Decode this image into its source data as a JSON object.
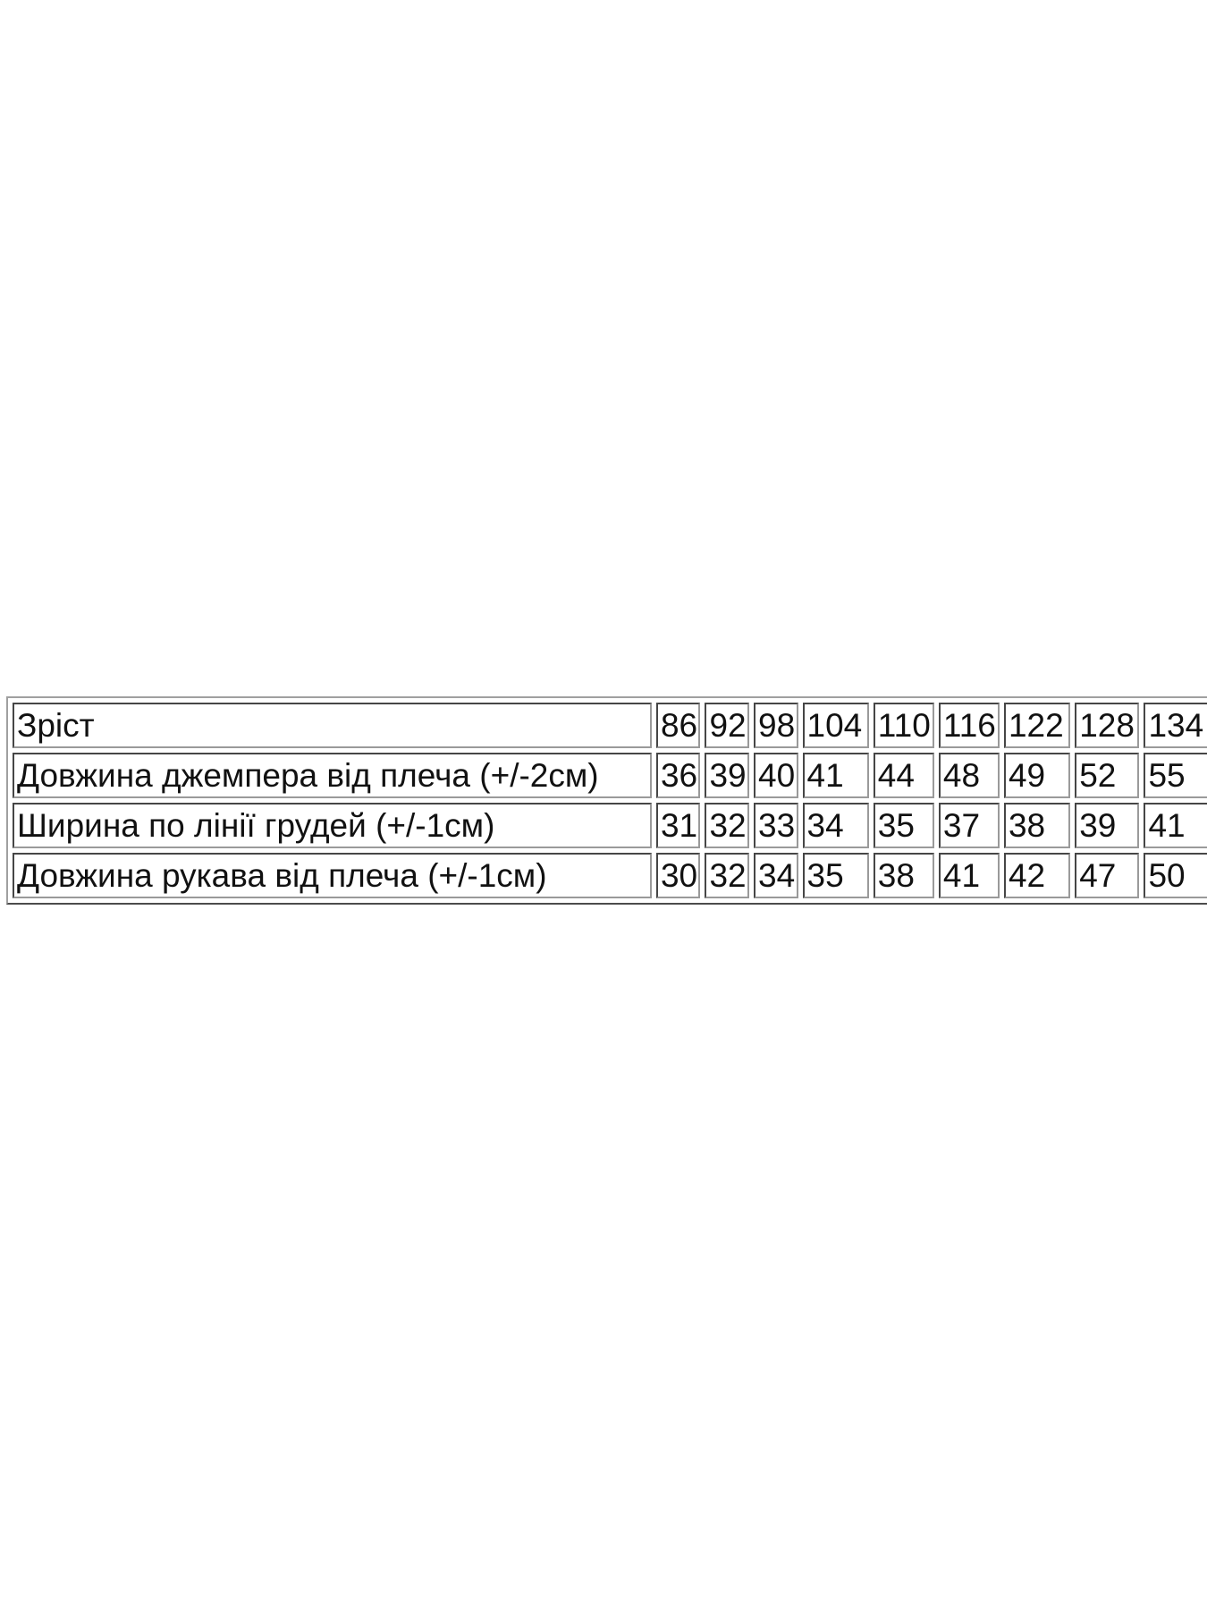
{
  "table": {
    "rows": [
      {
        "label": "Зріст",
        "values": [
          "86",
          "92",
          "98",
          "104",
          "110",
          "116",
          "122",
          "128",
          "134"
        ]
      },
      {
        "label": "Довжина джемпера від плеча (+/-2см)",
        "values": [
          "36",
          "39",
          "40",
          "41",
          "44",
          "48",
          "49",
          "52",
          "55"
        ]
      },
      {
        "label": "Ширина по лінії грудей (+/-1см)",
        "values": [
          "31",
          "32",
          "33",
          "34",
          "35",
          "37",
          "38",
          "39",
          "41"
        ]
      },
      {
        "label": "Довжина рукава від плеча (+/-1см)",
        "values": [
          "30",
          "32",
          "34",
          "35",
          "38",
          "41",
          "42",
          "47",
          "50"
        ]
      }
    ]
  }
}
